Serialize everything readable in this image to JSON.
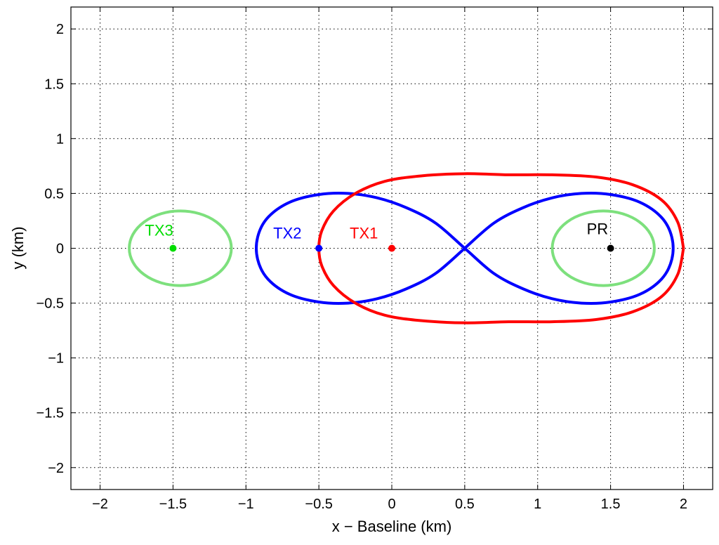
{
  "chart_data": {
    "type": "line",
    "title": "",
    "xlabel": "x − Baseline (km)",
    "ylabel": "y (km)",
    "xlim": [
      -2.2,
      2.2
    ],
    "ylim": [
      -2.2,
      2.2
    ],
    "grid": true,
    "x_ticks": [
      -2,
      -1.5,
      -1,
      -0.5,
      0,
      0.5,
      1,
      1.5,
      2
    ],
    "x_tick_labels": [
      "−2",
      "−1.5",
      "−1",
      "−0.5",
      "0",
      "0.5",
      "1",
      "1.5",
      "2"
    ],
    "y_ticks": [
      2,
      1.5,
      1,
      0.5,
      0,
      -0.5,
      -1,
      -1.5,
      -2
    ],
    "y_tick_labels": [
      "2",
      "1.5",
      "1",
      "0.5",
      "0",
      "−0.5",
      "−1",
      "−1.5",
      "−2"
    ],
    "points": [
      {
        "label": "TX3",
        "x": -1.5,
        "y": 0,
        "color": "#00dd00"
      },
      {
        "label": "TX2",
        "x": -0.5,
        "y": 0,
        "color": "#0000ff"
      },
      {
        "label": "TX1",
        "x": 0,
        "y": 0,
        "color": "#ff0000"
      },
      {
        "label": "PR",
        "x": 1.5,
        "y": 0,
        "color": "#000000"
      }
    ],
    "series": [
      {
        "color": "#0000ff",
        "points": [
          [
            0.5,
            0
          ],
          [
            0.7,
            0.23
          ],
          [
            0.9,
            0.37
          ],
          [
            1.1,
            0.46
          ],
          [
            1.3,
            0.5
          ],
          [
            1.5,
            0.49
          ],
          [
            1.7,
            0.42
          ],
          [
            1.85,
            0.28
          ],
          [
            1.92,
            0.1
          ],
          [
            1.92,
            -0.1
          ],
          [
            1.85,
            -0.28
          ],
          [
            1.7,
            -0.42
          ],
          [
            1.5,
            -0.49
          ],
          [
            1.3,
            -0.5
          ],
          [
            1.1,
            -0.46
          ],
          [
            0.9,
            -0.37
          ],
          [
            0.7,
            -0.23
          ],
          [
            0.5,
            0
          ],
          [
            0.3,
            0.23
          ],
          [
            0.1,
            0.37
          ],
          [
            -0.1,
            0.46
          ],
          [
            -0.3,
            0.5
          ],
          [
            -0.5,
            0.49
          ],
          [
            -0.7,
            0.42
          ],
          [
            -0.85,
            0.28
          ],
          [
            -0.92,
            0.1
          ],
          [
            -0.92,
            -0.1
          ],
          [
            -0.85,
            -0.28
          ],
          [
            -0.7,
            -0.42
          ],
          [
            -0.5,
            -0.49
          ],
          [
            -0.3,
            -0.5
          ],
          [
            -0.1,
            -0.46
          ],
          [
            0.1,
            -0.37
          ],
          [
            0.3,
            -0.23
          ],
          [
            0.5,
            0
          ]
        ]
      },
      {
        "color": "#ff0000",
        "points": [
          [
            2.0,
            0
          ],
          [
            1.96,
            0.24
          ],
          [
            1.85,
            0.44
          ],
          [
            1.65,
            0.58
          ],
          [
            1.4,
            0.65
          ],
          [
            1.1,
            0.67
          ],
          [
            0.8,
            0.67
          ],
          [
            0.5,
            0.68
          ],
          [
            0.2,
            0.66
          ],
          [
            -0.05,
            0.61
          ],
          [
            -0.25,
            0.5
          ],
          [
            -0.4,
            0.34
          ],
          [
            -0.48,
            0.16
          ],
          [
            -0.5,
            0
          ],
          [
            -0.48,
            -0.16
          ],
          [
            -0.4,
            -0.34
          ],
          [
            -0.25,
            -0.5
          ],
          [
            -0.05,
            -0.61
          ],
          [
            0.2,
            -0.66
          ],
          [
            0.5,
            -0.68
          ],
          [
            0.8,
            -0.67
          ],
          [
            1.1,
            -0.67
          ],
          [
            1.4,
            -0.65
          ],
          [
            1.65,
            -0.58
          ],
          [
            1.85,
            -0.44
          ],
          [
            1.96,
            -0.24
          ],
          [
            2.0,
            0
          ]
        ]
      },
      {
        "color": "#7de07d",
        "ellipse": {
          "cx": -1.45,
          "cy": 0,
          "rx": 0.35,
          "ry": 0.34
        }
      },
      {
        "color": "#7de07d",
        "ellipse": {
          "cx": 1.45,
          "cy": 0,
          "rx": 0.35,
          "ry": 0.34
        }
      }
    ]
  }
}
